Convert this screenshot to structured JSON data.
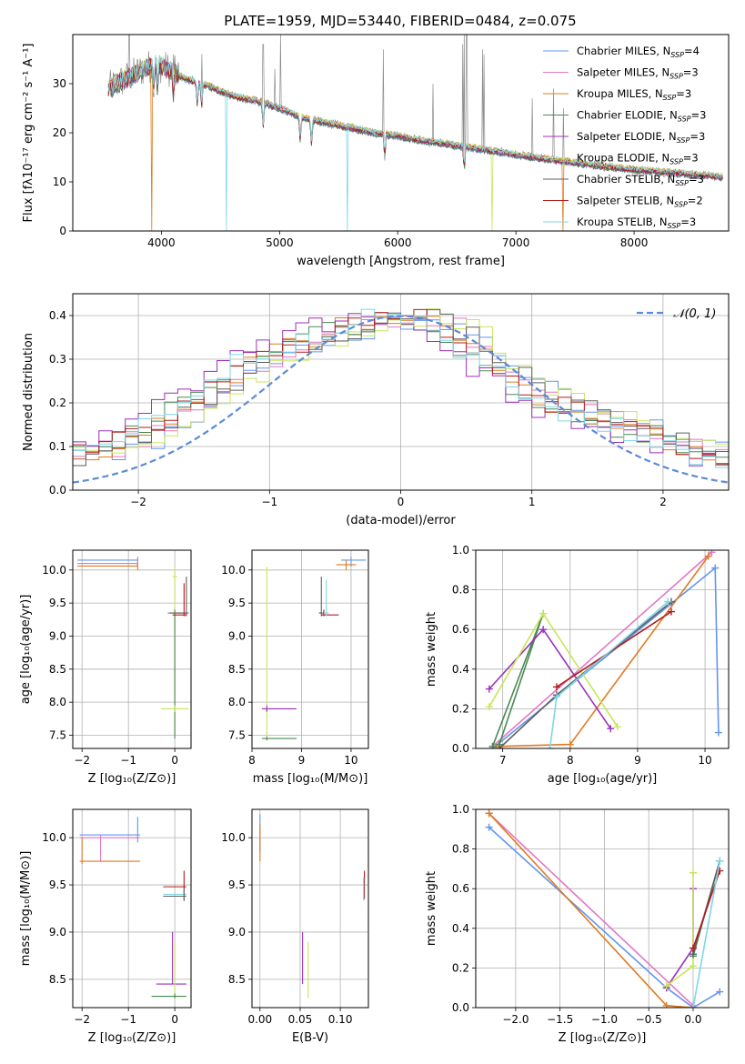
{
  "title": "PLATE=1959, MJD=53440, FIBERID=0484, z=0.075",
  "colors": {
    "Chabrier MILES": "#6495ed",
    "Salpeter MILES": "#e377c2",
    "Kroupa MILES": "#e07b20",
    "Chabrier ELODIE": "#4a8a55",
    "Salpeter ELODIE": "#9b30b8",
    "Kroupa ELODIE": "#c8e65a",
    "Chabrier STELIB": "#5f5f5f",
    "Salpeter STELIB": "#b31b1b",
    "Kroupa STELIB": "#7fd6e6",
    "normal": "#5b8bd9",
    "data": "#8c8c8c"
  },
  "chart_data": [
    {
      "id": "spectrum",
      "type": "line",
      "xlabel": "wavelength [Angstrom, rest frame]",
      "ylabel": "Flux [fλ10⁻¹⁷ erg cm⁻² s⁻¹ A⁻¹]",
      "xlim": [
        3250,
        8800
      ],
      "ylim": [
        0,
        40
      ],
      "xticks": [
        4000,
        5000,
        6000,
        7000,
        8000
      ],
      "yticks": [
        0,
        10,
        20,
        30
      ],
      "legend_position": "top-right",
      "legend": [
        {
          "text": "Chabrier MILES, N",
          "sub": "SSP",
          "tail": "=4",
          "model": "Chabrier MILES"
        },
        {
          "text": "Salpeter MILES, N",
          "sub": "SSP",
          "tail": "=3",
          "model": "Salpeter MILES"
        },
        {
          "text": "Kroupa MILES, N",
          "sub": "SSP",
          "tail": "=3",
          "model": "Kroupa MILES"
        },
        {
          "text": "Chabrier ELODIE, N",
          "sub": "SSP",
          "tail": "=3",
          "model": "Chabrier ELODIE"
        },
        {
          "text": "Salpeter ELODIE, N",
          "sub": "SSP",
          "tail": "=3",
          "model": "Salpeter ELODIE"
        },
        {
          "text": "Kroupa ELODIE, N",
          "sub": "SSP",
          "tail": "=3",
          "model": "Kroupa ELODIE"
        },
        {
          "text": "Chabrier STELIB, N",
          "sub": "SSP",
          "tail": "=3",
          "model": "Chabrier STELIB"
        },
        {
          "text": "Salpeter STELIB, N",
          "sub": "SSP",
          "tail": "=2",
          "model": "Salpeter STELIB"
        },
        {
          "text": "Kroupa STELIB, N",
          "sub": "SSP",
          "tail": "=3",
          "model": "Kroupa STELIB"
        }
      ],
      "continuum": [
        [
          3550,
          29
        ],
        [
          3700,
          31
        ],
        [
          3850,
          33
        ],
        [
          3950,
          34
        ],
        [
          4050,
          33
        ],
        [
          4200,
          31
        ],
        [
          4400,
          29.5
        ],
        [
          4600,
          27.5
        ],
        [
          4800,
          26.5
        ],
        [
          5000,
          25
        ],
        [
          5200,
          23
        ],
        [
          5400,
          22
        ],
        [
          5600,
          21
        ],
        [
          5800,
          20
        ],
        [
          6000,
          19.3
        ],
        [
          6200,
          18.4
        ],
        [
          6400,
          17.8
        ],
        [
          6600,
          17
        ],
        [
          6800,
          16.3
        ],
        [
          7000,
          15.5
        ],
        [
          7200,
          14.8
        ],
        [
          7400,
          14.2
        ],
        [
          7600,
          13.6
        ],
        [
          7800,
          13
        ],
        [
          8000,
          12.5
        ],
        [
          8200,
          12.1
        ],
        [
          8400,
          11.7
        ],
        [
          8600,
          11.3
        ],
        [
          8750,
          11
        ]
      ],
      "emission_lines": [
        [
          3727,
          40
        ],
        [
          4101,
          36
        ],
        [
          4340,
          36
        ],
        [
          4861,
          38
        ],
        [
          4959,
          33
        ],
        [
          5007,
          40
        ],
        [
          5876,
          37
        ],
        [
          6300,
          30
        ],
        [
          6548,
          38
        ],
        [
          6563,
          40
        ],
        [
          6583,
          40
        ],
        [
          6717,
          37
        ],
        [
          6731,
          36
        ],
        [
          7136,
          27
        ],
        [
          7320,
          29
        ],
        [
          7400,
          25
        ]
      ],
      "dropouts": [
        [
          3915,
          "Kroupa MILES"
        ],
        [
          4550,
          "Kroupa STELIB"
        ],
        [
          5577,
          "Kroupa STELIB"
        ],
        [
          6800,
          "Kroupa ELODIE"
        ],
        [
          7400,
          "Kroupa MILES"
        ]
      ]
    },
    {
      "id": "residuals",
      "type": "histogram",
      "xlabel": "(data-model)/error",
      "ylabel": "Normed distribution",
      "xlim": [
        -2.5,
        2.5
      ],
      "ylim": [
        0,
        0.45
      ],
      "xticks": [
        -2,
        -1,
        0,
        1,
        2
      ],
      "yticks": [
        0.0,
        0.1,
        0.2,
        0.3,
        0.4
      ],
      "grid": true,
      "legend_position": "top-right",
      "legend_label": "𝒩(0, 1)",
      "bin_width": 0.1,
      "base_curve": [
        0.08,
        0.09,
        0.1,
        0.11,
        0.12,
        0.13,
        0.15,
        0.17,
        0.19,
        0.21,
        0.23,
        0.25,
        0.27,
        0.29,
        0.3,
        0.32,
        0.33,
        0.34,
        0.35,
        0.36,
        0.37,
        0.38,
        0.38,
        0.39,
        0.4,
        0.4,
        0.39,
        0.38,
        0.37,
        0.35,
        0.32,
        0.3,
        0.28,
        0.26,
        0.24,
        0.22,
        0.2,
        0.19,
        0.18,
        0.17,
        0.16,
        0.15,
        0.14,
        0.13,
        0.12,
        0.11,
        0.1,
        0.09,
        0.08,
        0.07
      ]
    },
    {
      "id": "age-vs-Z",
      "type": "errorbar",
      "xlabel": "Z [log₁₀(Z/Z⊙)]",
      "ylabel": "age  [log₁₀(age/yr)]",
      "xlim": [
        -2.2,
        0.35
      ],
      "ylim": [
        7.3,
        10.3
      ],
      "xticks": [
        -2,
        -1,
        0
      ],
      "yticks": [
        7.5,
        8.0,
        8.5,
        9.0,
        9.5,
        10.0
      ],
      "grid": true,
      "points": [
        {
          "x": -0.8,
          "y": 10.15,
          "ex": [
            -2.1,
            -0.8
          ],
          "ey": [
            10.1,
            10.2
          ],
          "model": "Chabrier MILES"
        },
        {
          "x": -0.8,
          "y": 10.1,
          "ex": [
            -2.1,
            -0.8
          ],
          "ey": [
            10.05,
            10.15
          ],
          "model": "Salpeter MILES"
        },
        {
          "x": -0.8,
          "y": 10.06,
          "ex": [
            -2.1,
            -0.8
          ],
          "ey": [
            10.0,
            10.1
          ],
          "model": "Kroupa MILES"
        },
        {
          "x": 0.0,
          "y": 9.9,
          "ex": [
            -0.05,
            0.05
          ],
          "ey": [
            7.5,
            10.05
          ],
          "model": "Kroupa ELODIE"
        },
        {
          "x": 0.0,
          "y": 9.35,
          "ex": [
            -0.15,
            0.25
          ],
          "ey": [
            7.45,
            9.4
          ],
          "model": "Chabrier ELODIE"
        },
        {
          "x": 0.25,
          "y": 9.35,
          "ex": [
            -0.1,
            0.3
          ],
          "ey": [
            9.3,
            9.9
          ],
          "model": "Chabrier STELIB"
        },
        {
          "x": 0.2,
          "y": 9.32,
          "ex": [
            -0.05,
            0.25
          ],
          "ey": [
            9.3,
            9.8
          ],
          "model": "Salpeter STELIB"
        },
        {
          "x": 0.0,
          "y": 7.9,
          "ex": [
            -0.3,
            0.3
          ],
          "ey": [
            7.85,
            7.95
          ],
          "model": "Kroupa ELODIE"
        }
      ]
    },
    {
      "id": "age-vs-mass",
      "type": "errorbar",
      "xlabel": "mass [log₁₀(M/M⊙)]",
      "ylabel": "",
      "xlim": [
        8.0,
        10.35
      ],
      "ylim": [
        7.3,
        10.3
      ],
      "xticks": [
        8,
        9,
        10
      ],
      "yticks": [
        7.5,
        8.0,
        8.5,
        9.0,
        9.5,
        10.0
      ],
      "grid": true,
      "points": [
        {
          "x": 10.0,
          "y": 10.15,
          "ex": [
            9.8,
            10.3
          ],
          "ey": [
            10.05,
            10.2
          ],
          "model": "Chabrier MILES"
        },
        {
          "x": 9.9,
          "y": 10.08,
          "ex": [
            9.7,
            10.1
          ],
          "ey": [
            10.0,
            10.15
          ],
          "model": "Kroupa MILES"
        },
        {
          "x": 8.3,
          "y": 10.0,
          "ex": [
            8.25,
            8.35
          ],
          "ey": [
            7.45,
            10.05
          ],
          "model": "Kroupa ELODIE"
        },
        {
          "x": 8.3,
          "y": 7.9,
          "ex": [
            8.2,
            8.9
          ],
          "ey": [
            7.85,
            7.95
          ],
          "model": "Salpeter ELODIE"
        },
        {
          "x": 8.3,
          "y": 7.45,
          "ex": [
            8.2,
            8.9
          ],
          "ey": [
            7.42,
            7.48
          ],
          "model": "Chabrier ELODIE"
        },
        {
          "x": 9.4,
          "y": 9.35,
          "ex": [
            9.35,
            9.45
          ],
          "ey": [
            9.3,
            9.9
          ],
          "model": "Chabrier STELIB"
        },
        {
          "x": 9.45,
          "y": 9.32,
          "ex": [
            9.4,
            9.75
          ],
          "ey": [
            9.3,
            9.4
          ],
          "model": "Salpeter STELIB"
        },
        {
          "x": 9.5,
          "y": 9.35,
          "ex": [
            9.45,
            9.55
          ],
          "ey": [
            9.3,
            9.85
          ],
          "model": "Kroupa STELIB"
        }
      ]
    },
    {
      "id": "mass-weight-vs-age",
      "type": "line",
      "xlabel": "age  [log₁₀(age/yr)]",
      "ylabel": "mass weight",
      "xlim": [
        6.6,
        10.35
      ],
      "ylim": [
        0,
        1.0
      ],
      "xticks": [
        7,
        8,
        9,
        10
      ],
      "yticks": [
        0.0,
        0.2,
        0.4,
        0.6,
        0.8,
        1.0
      ],
      "grid": true,
      "series": [
        {
          "model": "Chabrier MILES",
          "x": [
            6.85,
            10.15,
            10.2
          ],
          "y": [
            0.0,
            0.91,
            0.08
          ]
        },
        {
          "model": "Salpeter MILES",
          "x": [
            6.85,
            10.1
          ],
          "y": [
            0.01,
            0.99
          ]
        },
        {
          "model": "Kroupa MILES",
          "x": [
            6.9,
            8.0,
            10.05
          ],
          "y": [
            0.01,
            0.02,
            0.97
          ]
        },
        {
          "model": "Chabrier ELODIE",
          "x": [
            6.85,
            7.6,
            6.95
          ],
          "y": [
            0.01,
            0.68,
            0.02
          ]
        },
        {
          "model": "Salpeter ELODIE",
          "x": [
            6.8,
            7.6,
            8.6
          ],
          "y": [
            0.3,
            0.6,
            0.1
          ]
        },
        {
          "model": "Kroupa ELODIE",
          "x": [
            6.8,
            7.6,
            8.7
          ],
          "y": [
            0.21,
            0.68,
            0.11
          ]
        },
        {
          "model": "Chabrier STELIB",
          "x": [
            6.95,
            7.8,
            9.5
          ],
          "y": [
            0.0,
            0.27,
            0.74
          ]
        },
        {
          "model": "Salpeter STELIB",
          "x": [
            7.8,
            9.5
          ],
          "y": [
            0.31,
            0.69
          ]
        },
        {
          "model": "Kroupa STELIB",
          "x": [
            7.7,
            7.8,
            9.45
          ],
          "y": [
            0.0,
            0.26,
            0.74
          ]
        }
      ]
    },
    {
      "id": "mass-vs-Z",
      "type": "errorbar",
      "xlabel": "Z [log₁₀(Z/Z⊙)]",
      "ylabel": "mass [log₁₀(M/M⊙)]",
      "xlim": [
        -2.2,
        0.35
      ],
      "ylim": [
        8.2,
        10.3
      ],
      "xticks": [
        -2,
        -1,
        0
      ],
      "yticks": [
        8.5,
        9.0,
        9.5,
        10.0
      ],
      "grid": true,
      "points": [
        {
          "x": -0.8,
          "y": 10.03,
          "ex": [
            -2.05,
            -0.75
          ],
          "ey": [
            9.95,
            10.22
          ],
          "model": "Chabrier MILES"
        },
        {
          "x": -1.6,
          "y": 10.0,
          "ex": [
            -2.05,
            -0.75
          ],
          "ey": [
            9.75,
            10.03
          ],
          "model": "Salpeter MILES"
        },
        {
          "x": -2.0,
          "y": 9.75,
          "ex": [
            -2.05,
            -0.75
          ],
          "ey": [
            9.72,
            10.0
          ],
          "model": "Kroupa MILES"
        },
        {
          "x": 0.2,
          "y": 9.48,
          "ex": [
            -0.25,
            0.25
          ],
          "ey": [
            9.35,
            9.65
          ],
          "model": "Salpeter STELIB"
        },
        {
          "x": 0.2,
          "y": 9.4,
          "ex": [
            -0.25,
            0.25
          ],
          "ey": [
            9.33,
            9.45
          ],
          "model": "Kroupa STELIB"
        },
        {
          "x": 0.2,
          "y": 9.38,
          "ex": [
            -0.25,
            0.25
          ],
          "ey": [
            9.33,
            9.45
          ],
          "model": "Chabrier STELIB"
        },
        {
          "x": -0.05,
          "y": 8.45,
          "ex": [
            -0.4,
            0.25
          ],
          "ey": [
            8.45,
            9.0
          ],
          "model": "Salpeter ELODIE"
        },
        {
          "x": 0.0,
          "y": 8.32,
          "ex": [
            -0.5,
            0.25
          ],
          "ey": [
            8.3,
            8.9
          ],
          "model": "Kroupa ELODIE"
        },
        {
          "x": 0.0,
          "y": 8.32,
          "ex": [
            -0.5,
            0.25
          ],
          "ey": [
            8.3,
            8.35
          ],
          "model": "Chabrier ELODIE"
        }
      ]
    },
    {
      "id": "mass-vs-ebv",
      "type": "errorbar",
      "xlabel": "E(B-V)",
      "ylabel": "",
      "xlim": [
        -0.01,
        0.135
      ],
      "ylim": [
        8.2,
        10.3
      ],
      "xticks": [
        0.0,
        0.05,
        0.1
      ],
      "yticks": [
        8.5,
        9.0,
        9.5,
        10.0
      ],
      "grid": true,
      "points": [
        {
          "x": 0.0,
          "y": 10.05,
          "ex": [
            0.0,
            0.0
          ],
          "ey": [
            9.85,
            10.25
          ],
          "model": "Chabrier MILES"
        },
        {
          "x": 0.0,
          "y": 10.0,
          "ex": [
            0.0,
            0.0
          ],
          "ey": [
            9.75,
            10.15
          ],
          "model": "Kroupa MILES"
        },
        {
          "x": 0.053,
          "y": 8.72,
          "ex": [
            0.053,
            0.053
          ],
          "ey": [
            8.45,
            9.0
          ],
          "model": "Salpeter ELODIE"
        },
        {
          "x": 0.06,
          "y": 8.6,
          "ex": [
            0.06,
            0.06
          ],
          "ey": [
            8.3,
            8.9
          ],
          "model": "Kroupa ELODIE"
        },
        {
          "x": 0.13,
          "y": 9.5,
          "ex": [
            0.13,
            0.13
          ],
          "ey": [
            9.35,
            9.65
          ],
          "model": "Salpeter STELIB"
        },
        {
          "x": 0.129,
          "y": 9.45,
          "ex": [
            0.129,
            0.129
          ],
          "ey": [
            9.33,
            9.58
          ],
          "model": "Kroupa STELIB"
        }
      ]
    },
    {
      "id": "mass-weight-vs-Z",
      "type": "line",
      "xlabel": "Z [log₁₀(Z/Z⊙)]",
      "ylabel": "mass weight",
      "xlim": [
        -2.45,
        0.4
      ],
      "ylim": [
        0,
        1.0
      ],
      "xticks": [
        -2.0,
        -1.5,
        -1.0,
        -0.5,
        0.0
      ],
      "yticks": [
        0.0,
        0.2,
        0.4,
        0.6,
        0.8,
        1.0
      ],
      "grid": true,
      "series": [
        {
          "model": "Chabrier MILES",
          "x": [
            -2.3,
            -0.3,
            0.0,
            0.3
          ],
          "y": [
            0.91,
            0.1,
            0.0,
            0.08
          ]
        },
        {
          "model": "Salpeter MILES",
          "x": [
            -2.3,
            0.0
          ],
          "y": [
            0.98,
            0.01
          ]
        },
        {
          "model": "Kroupa MILES",
          "x": [
            -2.3,
            -0.3,
            0.0
          ],
          "y": [
            0.98,
            0.01,
            0.0
          ]
        },
        {
          "model": "Chabrier ELODIE",
          "x": [
            0.0,
            0.3
          ],
          "y": [
            0.26,
            0.74
          ]
        },
        {
          "model": "Salpeter ELODIE",
          "x": [
            -0.3,
            0.0,
            0.0
          ],
          "y": [
            0.1,
            0.3,
            0.6
          ]
        },
        {
          "model": "Kroupa ELODIE",
          "x": [
            -0.3,
            0.0,
            0.0
          ],
          "y": [
            0.11,
            0.21,
            0.68
          ]
        },
        {
          "model": "Chabrier STELIB",
          "x": [
            0.0,
            0.3
          ],
          "y": [
            0.27,
            0.74
          ]
        },
        {
          "model": "Salpeter STELIB",
          "x": [
            0.0,
            0.3
          ],
          "y": [
            0.3,
            0.69
          ]
        },
        {
          "model": "Kroupa STELIB",
          "x": [
            0.0,
            0.3
          ],
          "y": [
            0.0,
            0.74
          ]
        }
      ]
    }
  ]
}
